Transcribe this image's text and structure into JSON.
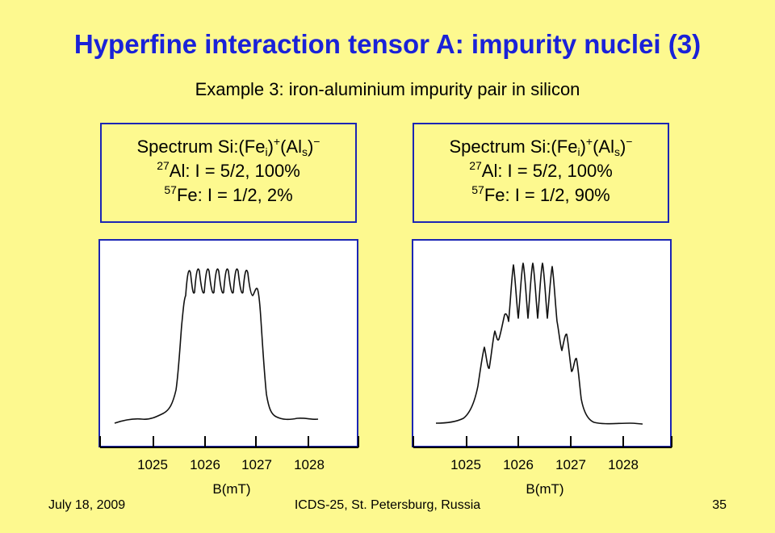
{
  "slide": {
    "title": "Hyperfine interaction tensor A: impurity nuclei (3)",
    "subtitle": "Example 3: iron-aluminium impurity pair in silicon"
  },
  "panels": [
    {
      "spectrum": {
        "prefix": "Spectrum Si:(Fe",
        "fe_sub": "i",
        "fe_charge": "+",
        "al": "(Al",
        "al_sub": "s",
        "al_charge": "−",
        "close": ")",
        "close2": ")"
      },
      "al": {
        "mass": "27",
        "text": "Al: I = 5/2, 100%"
      },
      "fe": {
        "mass": "57",
        "text": "Fe: I = 1/2, 2%"
      }
    },
    {
      "spectrum": {
        "prefix": "Spectrum Si:(Fe",
        "fe_sub": "i",
        "fe_charge": "+",
        "al": "(Al",
        "al_sub": "s",
        "al_charge": "−",
        "close": ")",
        "close2": ")"
      },
      "al": {
        "mass": "27",
        "text": "Al: I = 5/2, 100%"
      },
      "fe": {
        "mass": "57",
        "text": "Fe: I = 1/2, 90%"
      }
    }
  ],
  "axis": {
    "ticks": [
      "1025",
      "1026",
      "1027",
      "1028"
    ],
    "label": "B(mT)"
  },
  "footer": {
    "date": "July 18, 2009",
    "conference": "ICDS-25, St. Petersburg, Russia",
    "page": "35"
  }
}
